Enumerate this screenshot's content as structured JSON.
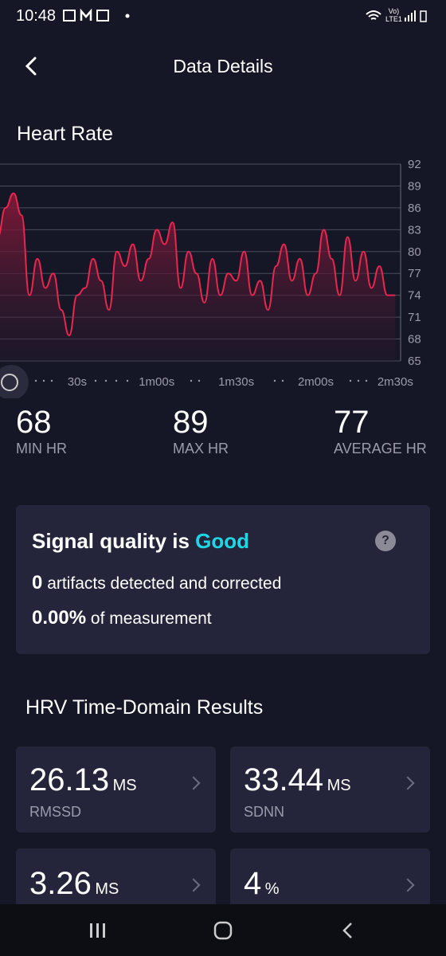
{
  "status_bar": {
    "time": "10:48",
    "network": "LTE1",
    "volte": "Vo)"
  },
  "header": {
    "title": "Data Details"
  },
  "section_title": "Heart Rate",
  "chart_data": {
    "type": "line",
    "x": [
      0,
      3,
      6,
      9,
      12,
      15,
      18,
      21,
      24,
      27,
      30,
      33,
      36,
      39,
      42,
      45,
      48,
      51,
      54,
      57,
      60,
      63,
      66,
      69,
      72,
      75,
      78,
      81,
      84,
      87,
      90,
      93,
      96,
      99,
      102,
      105,
      108,
      111,
      114,
      117,
      120,
      123,
      126,
      129,
      132,
      135,
      138,
      141,
      144,
      147,
      150
    ],
    "series": [
      {
        "name": "Heart Rate",
        "color": "#e8264f",
        "values": [
          82,
          86,
          88,
          85,
          74,
          79,
          75,
          77,
          72,
          68.5,
          74,
          75,
          79,
          76,
          72,
          80,
          78,
          81,
          76,
          79,
          83,
          81,
          84,
          75,
          80,
          77,
          73,
          79,
          74,
          77,
          76,
          80,
          74,
          76,
          72,
          78,
          81,
          76,
          79,
          74,
          77,
          83,
          79,
          74,
          82,
          76,
          80,
          75,
          78,
          74,
          74
        ]
      }
    ],
    "xlim": [
      0,
      152
    ],
    "xticks": [
      {
        "value": 30,
        "label": "30s"
      },
      {
        "value": 60,
        "label": "1m00s"
      },
      {
        "value": 90,
        "label": "1m30s"
      },
      {
        "value": 120,
        "label": "2m00s"
      },
      {
        "value": 150,
        "label": "2m30s"
      }
    ],
    "ylim": [
      65,
      92
    ],
    "yticks": [
      65,
      68,
      71,
      74,
      77,
      80,
      83,
      86,
      89,
      92
    ],
    "grid": true
  },
  "stats": [
    {
      "value": "68",
      "label": "MIN HR"
    },
    {
      "value": "89",
      "label": "MAX HR"
    },
    {
      "value": "77",
      "label": "AVERAGE HR"
    }
  ],
  "signal_quality": {
    "title": "Signal quality is",
    "status": "Good",
    "help": "?",
    "artifacts_count": "0",
    "artifacts_text": "artifacts detected and corrected",
    "percent": "0.00%",
    "percent_text": "of measurement"
  },
  "hrv": {
    "title": "HRV Time-Domain Results",
    "cards": [
      {
        "value": "26.13",
        "unit": "MS",
        "label": "RMSSD"
      },
      {
        "value": "33.44",
        "unit": "MS",
        "label": "SDNN"
      },
      {
        "value": "3.26",
        "unit": "MS"
      },
      {
        "value": "4",
        "unit": "%"
      }
    ]
  }
}
